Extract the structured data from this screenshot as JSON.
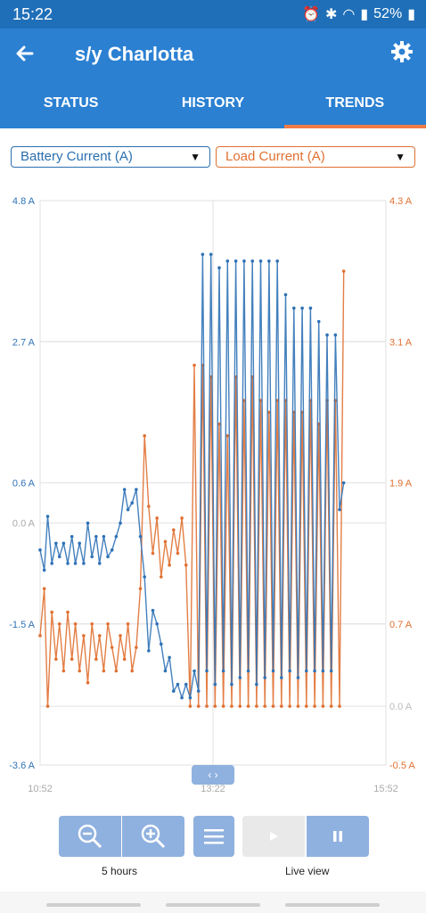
{
  "status_bar": {
    "time": "15:22",
    "battery_pct": "52%",
    "icons": [
      "alarm-icon",
      "bluetooth-icon",
      "wifi-icon",
      "signal-icon",
      "battery-icon"
    ]
  },
  "app_bar": {
    "title": "s/y Charlotta",
    "back_icon": "arrow-left-icon",
    "settings_icon": "gear-icon"
  },
  "tabs": [
    {
      "label": "STATUS",
      "active": false
    },
    {
      "label": "HISTORY",
      "active": false
    },
    {
      "label": "TRENDS",
      "active": true
    }
  ],
  "selectors": {
    "left": "Battery Current (A)",
    "right": "Load Current (A)"
  },
  "colors": {
    "battery": "#2f72b6",
    "load": "#e07031",
    "header": "#2b80d2",
    "tab_indicator": "#f07b45",
    "control": "#8fb1df"
  },
  "controls": {
    "zoom_label": "5 hours",
    "live_label": "Live view",
    "handle_glyph": "‹ ›"
  },
  "chart_data": {
    "type": "line",
    "x_ticks": [
      "10:52",
      "13:22",
      "15:52"
    ],
    "y_left": {
      "ticks": [
        "4.8 A",
        "2.7 A",
        "0.6 A",
        "0.0 A",
        "-1.5 A",
        "-3.6 A"
      ],
      "range": [
        -3.6,
        4.8
      ]
    },
    "y_right": {
      "ticks": [
        "4.3 A",
        "3.1 A",
        "1.9 A",
        "0.7 A",
        "0.0 A",
        "-0.5 A"
      ],
      "range": [
        -0.5,
        4.3
      ]
    },
    "grid": true,
    "series": [
      {
        "axis": "left",
        "x": [
          10.87,
          10.93,
          10.98,
          11.04,
          11.1,
          11.15,
          11.21,
          11.27,
          11.33,
          11.38,
          11.44,
          11.5,
          11.56,
          11.62,
          11.68,
          11.73,
          11.79,
          11.85,
          11.91,
          11.97,
          12.03,
          12.09,
          12.14,
          12.2,
          12.26,
          12.32,
          12.38,
          12.44,
          12.5,
          12.56,
          12.62,
          12.68,
          12.74,
          12.8,
          12.86,
          12.92,
          12.98,
          13.04,
          13.1,
          13.16,
          13.22,
          13.28,
          13.34,
          13.4,
          13.46,
          13.52,
          13.58,
          13.64,
          13.7,
          13.76,
          13.82,
          13.88,
          13.94,
          14.0,
          14.06,
          14.12,
          14.18,
          14.24,
          14.3,
          14.36,
          14.42,
          14.48,
          14.54,
          14.6,
          14.66,
          14.72,
          14.78,
          14.84,
          14.9,
          14.96,
          15.02,
          15.08,
          15.14,
          15.2,
          15.26
        ],
        "y": [
          -0.4,
          -0.7,
          0.1,
          -0.6,
          -0.3,
          -0.5,
          -0.3,
          -0.6,
          -0.2,
          -0.6,
          -0.3,
          -0.6,
          0.0,
          -0.5,
          -0.2,
          -0.6,
          -0.2,
          -0.5,
          -0.4,
          -0.2,
          0.0,
          0.5,
          0.2,
          0.3,
          0.5,
          -0.2,
          -0.8,
          -1.9,
          -1.3,
          -1.5,
          -1.8,
          -2.2,
          -2.0,
          -2.5,
          -2.4,
          -2.6,
          -2.4,
          -2.6,
          -2.2,
          -2.5,
          4.0,
          -2.2,
          4.0,
          -2.4,
          3.8,
          -2.2,
          3.9,
          -2.4,
          3.9,
          -2.3,
          3.9,
          -2.2,
          3.9,
          -2.4,
          3.9,
          -2.3,
          3.9,
          -2.2,
          3.9,
          -2.3,
          3.4,
          -2.2,
          3.2,
          -2.3,
          3.2,
          -2.2,
          3.2,
          -2.2,
          3.0,
          -2.2,
          2.8,
          -2.2,
          2.8,
          0.2,
          0.6
        ]
      },
      {
        "axis": "right",
        "x": [
          10.87,
          10.93,
          10.98,
          11.04,
          11.1,
          11.15,
          11.21,
          11.27,
          11.33,
          11.38,
          11.44,
          11.5,
          11.56,
          11.62,
          11.68,
          11.73,
          11.79,
          11.85,
          11.91,
          11.97,
          12.03,
          12.09,
          12.14,
          12.2,
          12.26,
          12.32,
          12.38,
          12.44,
          12.5,
          12.56,
          12.62,
          12.68,
          12.74,
          12.8,
          12.86,
          12.92,
          12.98,
          13.04,
          13.1,
          13.16,
          13.22,
          13.28,
          13.34,
          13.4,
          13.46,
          13.52,
          13.58,
          13.64,
          13.7,
          13.76,
          13.82,
          13.88,
          13.94,
          14.0,
          14.06,
          14.12,
          14.18,
          14.24,
          14.3,
          14.36,
          14.42,
          14.48,
          14.54,
          14.6,
          14.66,
          14.72,
          14.78,
          14.84,
          14.9,
          14.96,
          15.02,
          15.08,
          15.14,
          15.2,
          15.26
        ],
        "y": [
          0.6,
          1.0,
          0.0,
          0.8,
          0.4,
          0.7,
          0.3,
          0.8,
          0.4,
          0.7,
          0.3,
          0.6,
          0.2,
          0.7,
          0.4,
          0.6,
          0.3,
          0.7,
          0.5,
          0.3,
          0.6,
          0.4,
          0.7,
          0.3,
          0.5,
          1.0,
          2.3,
          1.7,
          1.3,
          1.6,
          1.1,
          1.4,
          1.2,
          1.5,
          1.3,
          1.6,
          1.2,
          0.0,
          2.9,
          0.0,
          2.9,
          0.0,
          2.8,
          0.0,
          2.4,
          0.0,
          2.3,
          0.0,
          2.8,
          0.0,
          2.6,
          0.0,
          2.8,
          0.0,
          2.6,
          0.0,
          2.5,
          0.0,
          2.6,
          0.0,
          2.6,
          0.0,
          2.5,
          0.0,
          2.5,
          0.0,
          2.6,
          0.0,
          2.4,
          0.0,
          2.6,
          0.0,
          2.6,
          0.0,
          3.7
        ]
      }
    ]
  }
}
